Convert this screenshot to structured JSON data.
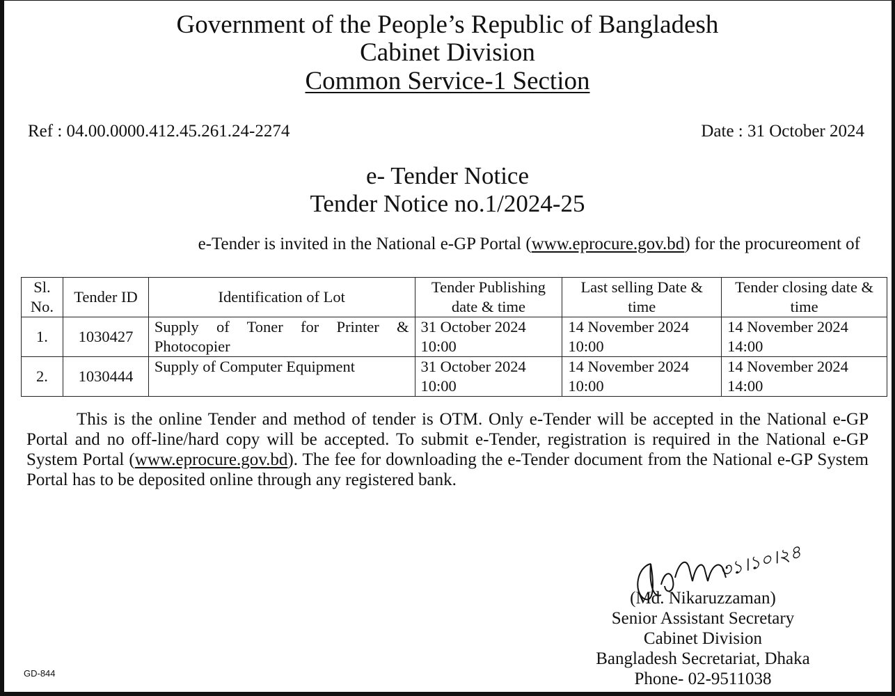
{
  "header": {
    "line1": "Government of the People’s Republic of Bangladesh",
    "line2": "Cabinet Division",
    "line3": "Common Service-1 Section"
  },
  "ref": "Ref : 04.00.0000.412.45.261.24-2274",
  "date": "Date : 31 October 2024",
  "notice": {
    "title": "e- Tender Notice",
    "subtitle": "Tender Notice no.1/2024-25"
  },
  "intro": {
    "before": "e-Tender is invited in the National e-GP Portal (",
    "link": "www.eprocure.gov.bd",
    "after": ") for the procureoment of"
  },
  "table": {
    "headers": [
      "Sl. No.",
      "Tender ID",
      "Identification of Lot",
      "Tender Publishing date & time",
      "Last selling Date & time",
      "Tender closing date & time"
    ],
    "rows": [
      [
        "1.",
        "1030427",
        "Supply of Toner for Printer & Photocopier",
        "31 October 2024 10:00",
        "14 November 2024 10:00",
        "14 November 2024 14:00"
      ],
      [
        "2.",
        "1030444",
        "Supply of Computer Equipment",
        "31 October 2024 10:00",
        "14 November 2024 10:00",
        "14 November 2024 14:00"
      ]
    ]
  },
  "body": {
    "part1": "This is the online Tender and method of tender is OTM. Only e-Tender will be accepted in the National e-GP Portal and no off-line/hard copy will be accepted. To submit e-Tender, registration is required in the National e-GP System Portal (",
    "link": "www.eprocure.gov.bd",
    "part2": "). The fee for downloading the e-Tender document from the National e-GP System Portal has to be deposited online through any registered bank."
  },
  "signature": {
    "handwritten_date": "৩১।১০।২৪",
    "name": "(Md. Nikaruzzaman)",
    "designation": "Senior Assistant Secretary",
    "office": "Cabinet Division",
    "address": "Bangladesh Secretariat, Dhaka",
    "phone": "Phone- 02-9511038"
  },
  "footer_code": "GD-844"
}
